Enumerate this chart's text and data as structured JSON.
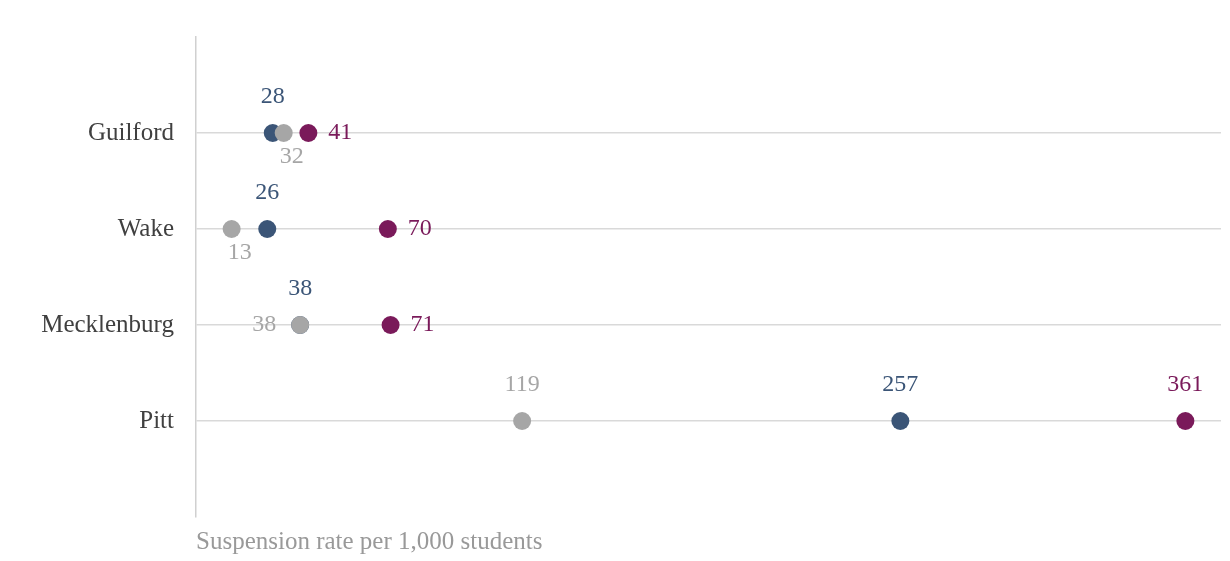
{
  "chart_data": {
    "type": "scatter",
    "orientation": "horizontal",
    "categories": [
      "Guilford",
      "Wake",
      "Mecklenburg",
      "Pitt"
    ],
    "series": [
      {
        "color": "#3b5577",
        "values": [
          28,
          26,
          38,
          257
        ]
      },
      {
        "color": "#a6a6a6",
        "values": [
          32,
          13,
          38,
          119
        ]
      },
      {
        "color": "#7a1a5a",
        "values": [
          41,
          70,
          71,
          361
        ]
      }
    ],
    "xlim": [
      0,
      374
    ],
    "xlabel": "Suspension rate per 1,000 students",
    "grid": "y",
    "marker": "circle",
    "data_labels": true,
    "tick_labels": "y"
  }
}
